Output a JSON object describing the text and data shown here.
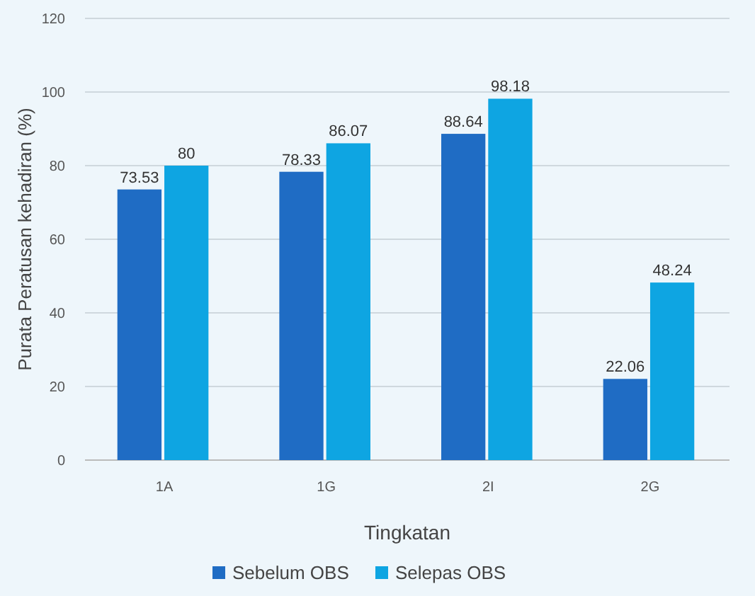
{
  "chart_data": {
    "type": "bar",
    "xlabel": "Tingkatan",
    "ylabel": "Purata Peratusan kehadiran (%)",
    "categories": [
      "1A",
      "1G",
      "2I",
      "2G"
    ],
    "series": [
      {
        "name": "Sebelum OBS",
        "color": "#1f6cc4",
        "values": [
          73.53,
          78.33,
          88.64,
          22.06
        ]
      },
      {
        "name": "Selepas OBS",
        "color": "#0ea5e2",
        "values": [
          80,
          86.07,
          98.18,
          48.24
        ]
      }
    ],
    "ylim": [
      0,
      120
    ],
    "yticks": [
      0,
      20,
      40,
      60,
      80,
      100,
      120
    ],
    "grid": "y",
    "legend": "bottom",
    "data_labels": true
  }
}
